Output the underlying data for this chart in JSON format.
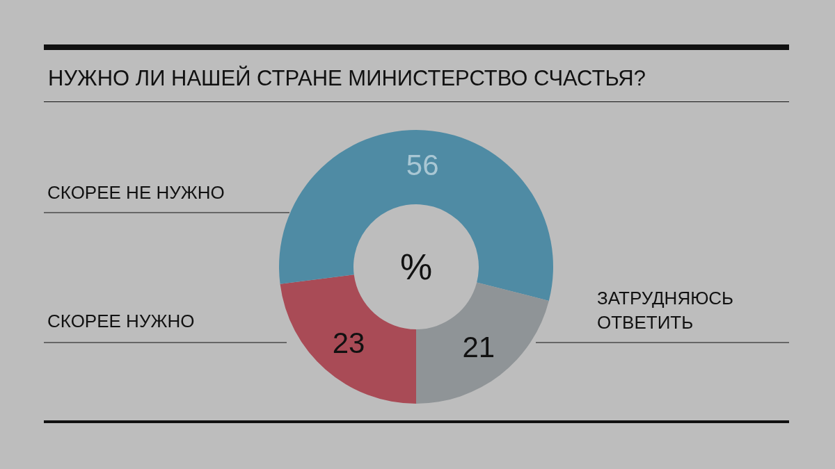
{
  "chart_data": {
    "type": "donut",
    "title": "НУЖНО ЛИ НАШЕЙ СТРАНЕ МИНИСТЕРСТВО СЧАСТЬЯ?",
    "categories": [
      "СКОРЕЕ НУЖНО",
      "СКОРЕЕ НЕ НУЖНО",
      "ЗАТРУДНЯЮСЬ ОТВЕТИТЬ"
    ],
    "values": [
      23,
      56,
      21
    ],
    "colors": [
      "#a94b56",
      "#4f8ba4",
      "#8f9497"
    ],
    "data_labels": true,
    "annotations": [
      "%"
    ]
  }
}
